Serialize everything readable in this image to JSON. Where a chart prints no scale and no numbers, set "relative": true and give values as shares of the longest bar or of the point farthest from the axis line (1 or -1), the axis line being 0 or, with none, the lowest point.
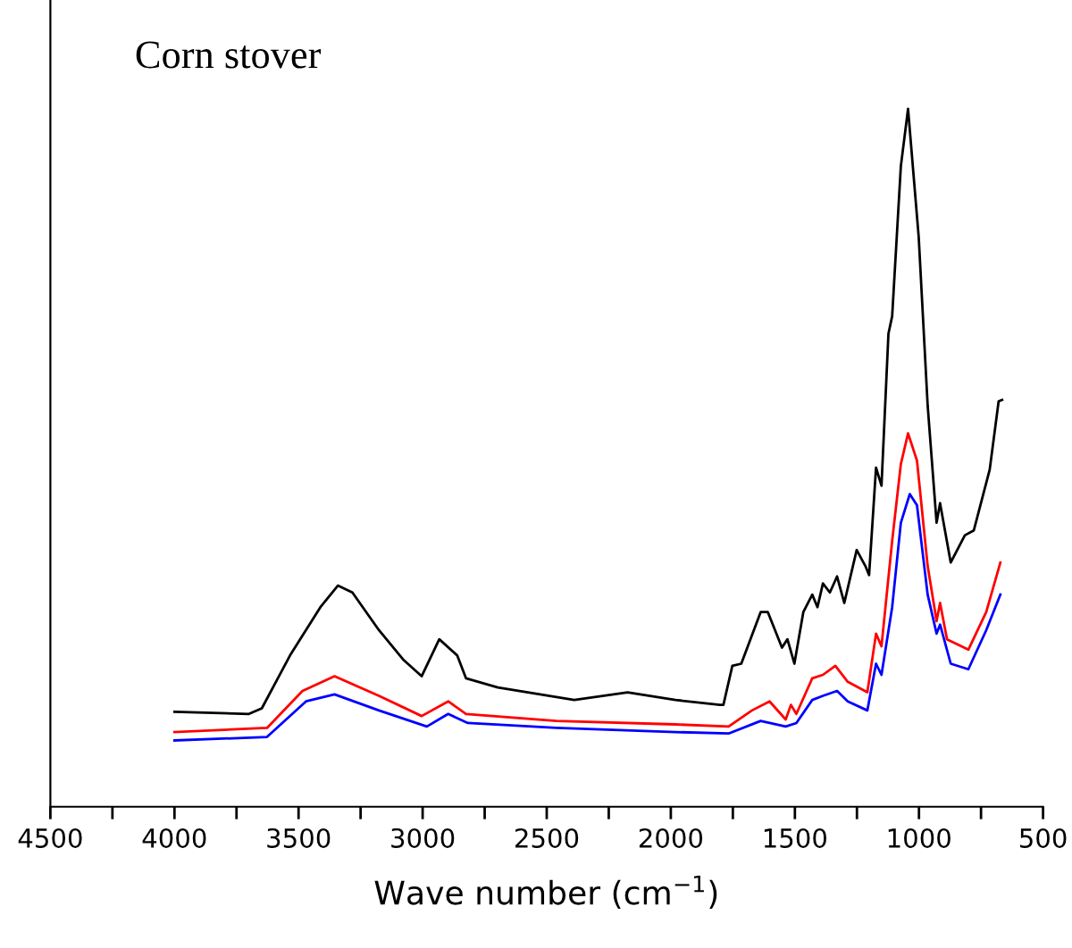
{
  "chart_data": {
    "type": "line",
    "relative": true,
    "xlabel": "Wave number (cm$^{−1}$)",
    "annotations": [
      "Corn stover"
    ],
    "xlim": [
      4500,
      500
    ],
    "xticks": [
      4500,
      {
        "value": 4250,
        "label": null
      },
      4000,
      {
        "value": 3750,
        "label": null
      },
      3500,
      {
        "value": 3250,
        "label": null
      },
      3000,
      {
        "value": 2750,
        "label": null
      },
      2500,
      {
        "value": 2250,
        "label": null
      },
      2000,
      {
        "value": 1750,
        "label": null
      },
      1500,
      {
        "value": 1250,
        "label": null
      },
      1000,
      {
        "value": 750,
        "label": null
      },
      500
    ],
    "grid": false,
    "marker": "none",
    "line_style": "solid",
    "series": [
      {
        "color": "#000000",
        "x": [
          4000,
          3700,
          3648,
          3534,
          3412,
          3341,
          3283,
          3176,
          3076,
          3004,
          2933,
          2861,
          2825,
          2697,
          2389,
          2174,
          1981,
          1802,
          1788,
          1752,
          1716,
          1638,
          1609,
          1552,
          1530,
          1502,
          1466,
          1430,
          1409,
          1387,
          1359,
          1330,
          1301,
          1251,
          1216,
          1201,
          1173,
          1151,
          1123,
          1108,
          1073,
          1044,
          1001,
          965,
          929,
          915,
          872,
          815,
          779,
          715,
          679,
          665
        ],
        "values": [
          0.136,
          0.133,
          0.141,
          0.217,
          0.286,
          0.317,
          0.307,
          0.253,
          0.21,
          0.187,
          0.24,
          0.217,
          0.184,
          0.171,
          0.153,
          0.164,
          0.153,
          0.146,
          0.146,
          0.202,
          0.205,
          0.279,
          0.279,
          0.228,
          0.24,
          0.205,
          0.279,
          0.304,
          0.286,
          0.32,
          0.307,
          0.33,
          0.292,
          0.368,
          0.345,
          0.332,
          0.486,
          0.46,
          0.678,
          0.703,
          0.918,
          1.0,
          0.816,
          0.575,
          0.407,
          0.435,
          0.35,
          0.389,
          0.396,
          0.483,
          0.581,
          0.583
        ]
      },
      {
        "color": "#ff0000",
        "x": [
          4000,
          3627,
          3484,
          3355,
          3176,
          3004,
          2897,
          2825,
          2461,
          1981,
          1767,
          1673,
          1602,
          1537,
          1516,
          1494,
          1430,
          1387,
          1337,
          1287,
          1208,
          1173,
          1151,
          1108,
          1073,
          1044,
          1008,
          965,
          929,
          915,
          887,
          801,
          729,
          672
        ],
        "values": [
          0.107,
          0.113,
          0.166,
          0.187,
          0.159,
          0.13,
          0.151,
          0.133,
          0.123,
          0.118,
          0.115,
          0.138,
          0.151,
          0.125,
          0.146,
          0.133,
          0.184,
          0.189,
          0.202,
          0.179,
          0.164,
          0.248,
          0.23,
          0.381,
          0.491,
          0.535,
          0.496,
          0.345,
          0.266,
          0.292,
          0.24,
          0.225,
          0.279,
          0.35
        ]
      },
      {
        "color": "#0000ff",
        "x": [
          4000,
          3627,
          3470,
          3355,
          3176,
          2983,
          2897,
          2818,
          2461,
          1981,
          1767,
          1638,
          1537,
          1494,
          1430,
          1387,
          1330,
          1287,
          1208,
          1173,
          1151,
          1108,
          1073,
          1037,
          1008,
          965,
          929,
          915,
          872,
          801,
          729,
          672
        ],
        "values": [
          0.095,
          0.1,
          0.151,
          0.161,
          0.138,
          0.115,
          0.133,
          0.12,
          0.113,
          0.107,
          0.105,
          0.123,
          0.115,
          0.12,
          0.153,
          0.159,
          0.166,
          0.151,
          0.138,
          0.205,
          0.189,
          0.286,
          0.407,
          0.448,
          0.432,
          0.304,
          0.248,
          0.261,
          0.205,
          0.197,
          0.253,
          0.304
        ]
      }
    ]
  }
}
